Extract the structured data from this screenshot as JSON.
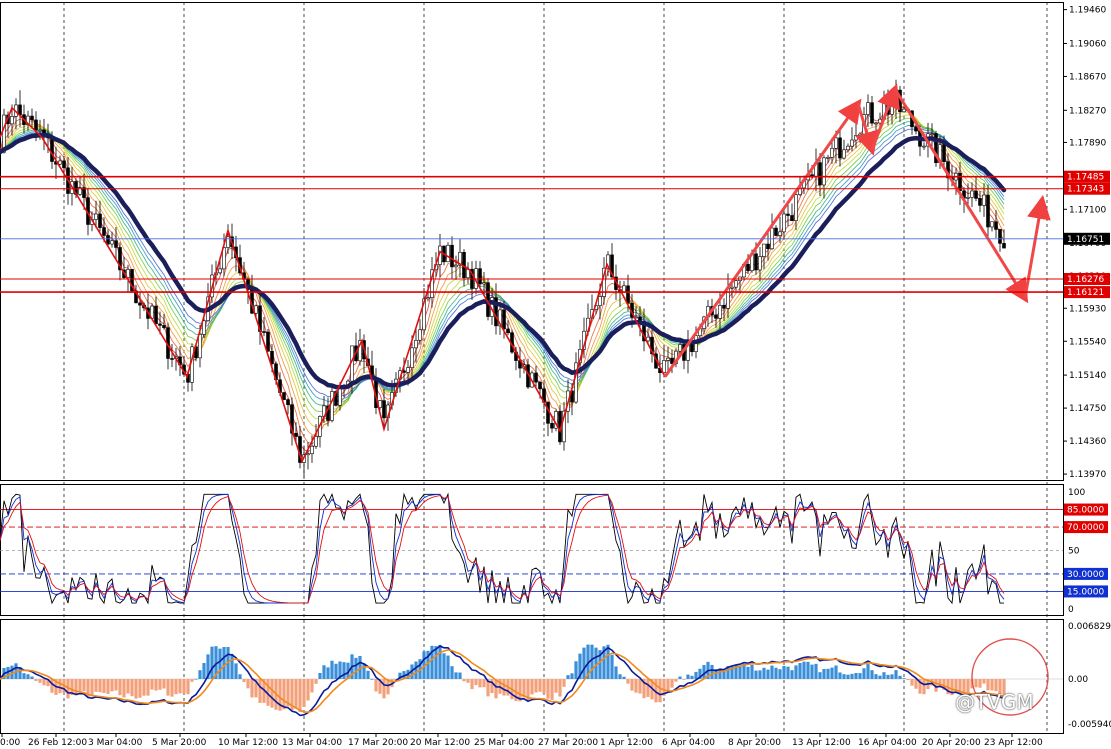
{
  "chart_data": [
    {
      "type": "candlestick",
      "panel": "price",
      "price_axis": {
        "ticks": [
          "1.19460",
          "1.19060",
          "1.18670",
          "1.18270",
          "1.17890",
          "1.17100",
          "1.16700",
          "1.16310",
          "1.15930",
          "1.15540",
          "1.15140",
          "1.14750",
          "1.14360",
          "1.13970"
        ],
        "ylim": [
          1.139,
          1.1955
        ]
      },
      "levels": [
        {
          "label": "1.17485",
          "value": 1.17485,
          "color": "#e00000"
        },
        {
          "label": "1.17343",
          "value": 1.17343,
          "color": "#e00000"
        },
        {
          "label": "1.16276",
          "value": 1.16276,
          "color": "#e00000"
        },
        {
          "label": "1.16121",
          "value": 1.16121,
          "color": "#e00000"
        }
      ],
      "current_price": {
        "label": "1.16751",
        "value": 1.16751
      },
      "zigzag": [
        [
          0,
          1.1795
        ],
        [
          12,
          1.183
        ],
        [
          42,
          1.1795
        ],
        [
          187,
          1.1512
        ],
        [
          228,
          1.1685
        ],
        [
          302,
          1.1412
        ],
        [
          362,
          1.1555
        ],
        [
          384,
          1.145
        ],
        [
          440,
          1.166
        ],
        [
          470,
          1.1638
        ],
        [
          560,
          1.1448
        ],
        [
          607,
          1.1645
        ],
        [
          665,
          1.1512
        ]
      ],
      "arrows": [
        {
          "from": [
            665,
            1.1512
          ],
          "to": [
            858,
            1.1835
          ]
        },
        {
          "from": [
            858,
            1.1835
          ],
          "to": [
            872,
            1.178
          ]
        },
        {
          "from": [
            872,
            1.178
          ],
          "to": [
            895,
            1.1852
          ]
        },
        {
          "from": [
            895,
            1.1852
          ],
          "to": [
            1025,
            1.1605
          ]
        },
        {
          "from": [
            1025,
            1.1605
          ],
          "to": [
            1042,
            1.172
          ]
        }
      ]
    },
    {
      "type": "line",
      "panel": "oscillator",
      "ylim": [
        0,
        100
      ],
      "ticks": [
        "100",
        "50",
        "0"
      ],
      "levels": [
        {
          "label": "85.0000",
          "value": 85,
          "color": "#e00000"
        },
        {
          "label": "70.0000",
          "value": 70,
          "color": "#e00000"
        },
        {
          "label": "30.0000",
          "value": 30,
          "color": "#1030d0"
        },
        {
          "label": "15.0000",
          "value": 15,
          "color": "#1030d0"
        }
      ]
    },
    {
      "type": "bar",
      "panel": "macd",
      "ticks": [
        "0.0068298",
        "0.00",
        "-0.0059409"
      ]
    }
  ],
  "time_axis": [
    "0:00",
    "26 Feb 12:00",
    "3 Mar 04:00",
    "5 Mar 20:00",
    "10 Mar 12:00",
    "13 Mar 04:00",
    "17 Mar 20:00",
    "20 Mar 12:00",
    "25 Mar 04:00",
    "27 Mar 20:00",
    "1 Apr 12:00",
    "6 Apr 04:00",
    "8 Apr 20:00",
    "13 Apr 12:00",
    "16 Apr 04:00",
    "20 Apr 20:00",
    "23 Apr 12:00"
  ],
  "watermark": "@TVGM",
  "colors": {
    "support_resistance": "#e00000",
    "slow_ma": "#1a1f5c",
    "bull_hist": "#3a8fd8",
    "bear_hist": "#f4a07a",
    "macd_line": "#0a1a9a",
    "signal_line": "#f08a1a"
  }
}
